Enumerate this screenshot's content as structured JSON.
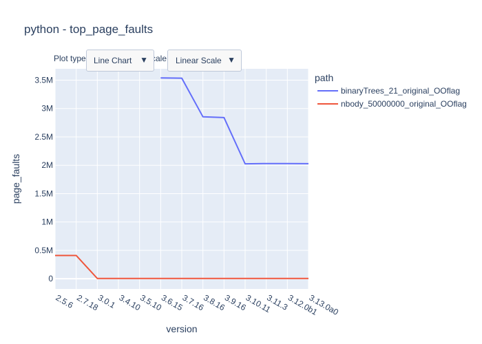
{
  "header": {
    "title": "python - top_page_faults"
  },
  "controls": {
    "plot_type_label": "Plot type",
    "plot_type_value": "Line Chart",
    "scale_label": "Scale:",
    "scale_value": "Linear Scale",
    "dropdown_arrow": "▼"
  },
  "chart_data": {
    "type": "line",
    "title": "python - top_page_faults",
    "xlabel": "version",
    "ylabel": "page_faults",
    "categories": [
      "2.5.6",
      "2.7.18",
      "3.0.1",
      "3.4.10",
      "3.5.10",
      "3.6.15",
      "3.7.16",
      "3.8.16",
      "3.9.16",
      "3.10.11",
      "3.11.3",
      "3.12.0b1",
      "3.13.0a0"
    ],
    "ylim": [
      -180000,
      3700000
    ],
    "yticks": [
      0,
      500000,
      1000000,
      1500000,
      2000000,
      2500000,
      3000000,
      3500000
    ],
    "ytick_labels": [
      "0",
      "0.5M",
      "1M",
      "1.5M",
      "2M",
      "2.5M",
      "3M",
      "3.5M"
    ],
    "grid": true,
    "legend": {
      "title": "path",
      "placement": "right"
    },
    "series": [
      {
        "name": "binaryTrees_21_original_OOflag",
        "color": "#636efa",
        "values": [
          null,
          null,
          null,
          null,
          null,
          3540000,
          3535000,
          2855000,
          2840000,
          2025000,
          2030000,
          2030000,
          2028000
        ]
      },
      {
        "name": "nbody_50000000_original_OOflag",
        "color": "#ef553b",
        "values": [
          410000,
          410000,
          5000,
          5000,
          5000,
          5000,
          5000,
          5000,
          5000,
          5000,
          5000,
          5000,
          5000
        ]
      }
    ]
  }
}
